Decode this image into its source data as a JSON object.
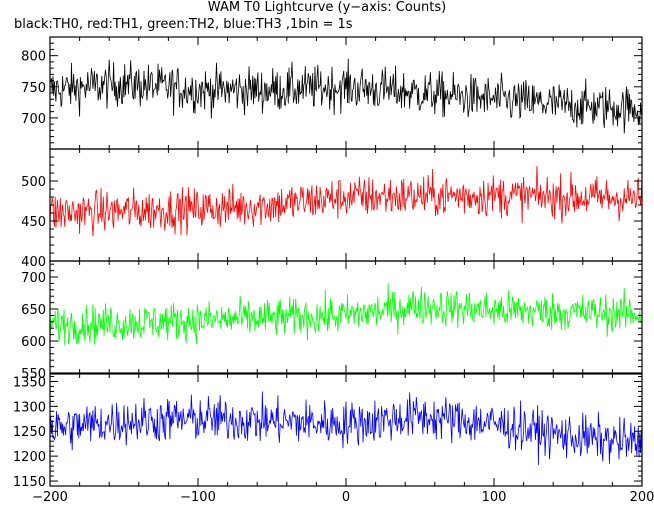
{
  "title": "WAM T0 Lightcurve (y−axis: Counts)",
  "subtitle": "black:TH0, red:TH1, green:TH2, blue:TH3 ,1bin = 1s",
  "chart_data": {
    "type": "line",
    "xlim": [
      -200,
      200
    ],
    "x_ticks": [
      -200,
      -100,
      0,
      100,
      200
    ],
    "x_tick_labels": [
      "−200",
      "−100",
      "0",
      "100",
      "200"
    ],
    "panels": [
      {
        "name": "TH0",
        "color": "#000000",
        "ylim": [
          650,
          830
        ],
        "y_ticks": [
          700,
          750,
          800
        ],
        "y_tick_labels": [
          "700",
          "750",
          "800"
        ],
        "mean": 740,
        "spread": 30,
        "profile": [
          [
            -200,
            745
          ],
          [
            -150,
            755
          ],
          [
            -100,
            745
          ],
          [
            -50,
            745
          ],
          [
            0,
            750
          ],
          [
            50,
            740
          ],
          [
            100,
            730
          ],
          [
            150,
            720
          ],
          [
            200,
            715
          ]
        ]
      },
      {
        "name": "TH1",
        "color": "#ff0000",
        "ylim": [
          400,
          540
        ],
        "y_ticks": [
          400,
          450,
          500
        ],
        "y_tick_labels": [
          "400",
          "450",
          "500"
        ],
        "mean": 470,
        "spread": 22,
        "profile": [
          [
            -200,
            460
          ],
          [
            -100,
            465
          ],
          [
            -50,
            470
          ],
          [
            0,
            480
          ],
          [
            100,
            482
          ],
          [
            200,
            478
          ]
        ]
      },
      {
        "name": "TH2",
        "color": "#00ff00",
        "ylim": [
          550,
          725
        ],
        "y_ticks": [
          550,
          600,
          650,
          700
        ],
        "y_tick_labels": [
          "550",
          "600",
          "650",
          "700"
        ],
        "mean": 635,
        "spread": 25,
        "profile": [
          [
            -200,
            625
          ],
          [
            -100,
            632
          ],
          [
            0,
            640
          ],
          [
            50,
            655
          ],
          [
            100,
            648
          ],
          [
            200,
            642
          ]
        ]
      },
      {
        "name": "TH3",
        "color": "#0000ff",
        "ylim": [
          1140,
          1365
        ],
        "y_ticks": [
          1150,
          1200,
          1250,
          1300,
          1350
        ],
        "y_tick_labels": [
          "1150",
          "1200",
          "1250",
          "1300",
          "1350"
        ],
        "mean": 1260,
        "spread": 38,
        "profile": [
          [
            -200,
            1255
          ],
          [
            -150,
            1270
          ],
          [
            -100,
            1275
          ],
          [
            0,
            1265
          ],
          [
            50,
            1280
          ],
          [
            100,
            1265
          ],
          [
            150,
            1240
          ],
          [
            200,
            1225
          ]
        ]
      }
    ]
  }
}
